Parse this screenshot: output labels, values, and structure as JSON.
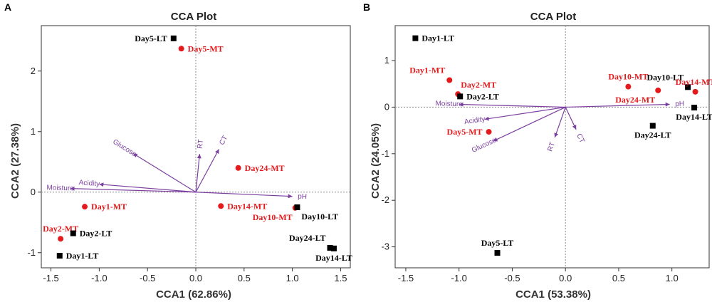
{
  "colors": {
    "arrow": "#7b3fa0",
    "mt_point": "#e41a1c",
    "lt_point": "#000000",
    "frame": "#333333",
    "zero_line": "#888888"
  },
  "chart_data": [
    {
      "panel_tag": "A",
      "type": "scatter",
      "title": "CCA Plot",
      "xlabel": "CCA1 (62.86%)",
      "ylabel": "CCA2 (27.38%)",
      "xlim": [
        -1.6,
        1.6
      ],
      "ylim": [
        -1.25,
        2.75
      ],
      "xticks": [
        -1.5,
        -1.0,
        -0.5,
        0.0,
        0.5,
        1.0,
        1.5
      ],
      "xtick_labels": [
        "-1.5",
        "-1.0",
        "-0.5",
        "0.0",
        "0.5",
        "1.0",
        "1.5"
      ],
      "yticks": [
        -1,
        0,
        1,
        2
      ],
      "ytick_labels": [
        "-1",
        "0",
        "1",
        "2"
      ],
      "legend": "none",
      "points": [
        {
          "label": "Day5-LT",
          "group": "LT",
          "x": -0.23,
          "y": 2.54,
          "label_pos": "left"
        },
        {
          "label": "Day5-MT",
          "group": "MT",
          "x": -0.15,
          "y": 2.37,
          "label_pos": "right"
        },
        {
          "label": "Day24-MT",
          "group": "MT",
          "x": 0.44,
          "y": 0.4,
          "label_pos": "right"
        },
        {
          "label": "Day1-MT",
          "group": "MT",
          "x": -1.15,
          "y": -0.24,
          "label_pos": "right"
        },
        {
          "label": "Day14-MT",
          "group": "MT",
          "x": 0.26,
          "y": -0.23,
          "label_pos": "right"
        },
        {
          "label": "Day10-MT",
          "group": "MT",
          "x": 1.03,
          "y": -0.26,
          "label_pos": "below-left"
        },
        {
          "label": "Day10-LT",
          "group": "LT",
          "x": 1.05,
          "y": -0.25,
          "label_pos": "below-right"
        },
        {
          "label": "Day2-MT",
          "group": "MT",
          "x": -1.4,
          "y": -0.77,
          "label_pos": "above"
        },
        {
          "label": "Day2-LT",
          "group": "LT",
          "x": -1.27,
          "y": -0.68,
          "label_pos": "right"
        },
        {
          "label": "Day1-LT",
          "group": "LT",
          "x": -1.41,
          "y": -1.05,
          "label_pos": "right"
        },
        {
          "label": "Day24-LT",
          "group": "LT",
          "x": 1.39,
          "y": -0.92,
          "label_pos": "above-left"
        },
        {
          "label": "Day14-LT",
          "group": "LT",
          "x": 1.43,
          "y": -0.93,
          "label_pos": "below"
        }
      ],
      "arrows": [
        {
          "label": "pH",
          "x": 1.0,
          "y": -0.07
        },
        {
          "label": "Moisture",
          "x": -1.3,
          "y": 0.06
        },
        {
          "label": "Acidity",
          "x": -1.0,
          "y": 0.13
        },
        {
          "label": "Glucose",
          "x": -0.65,
          "y": 0.64
        },
        {
          "label": "RT",
          "x": 0.04,
          "y": 0.63
        },
        {
          "label": "CT",
          "x": 0.24,
          "y": 0.71
        }
      ]
    },
    {
      "panel_tag": "B",
      "type": "scatter",
      "title": "CCA Plot",
      "xlabel": "CCA1 (53.38%)",
      "ylabel": "CCA2 (24.05%)",
      "xlim": [
        -1.6,
        1.35
      ],
      "ylim": [
        -3.45,
        1.75
      ],
      "xticks": [
        -1.5,
        -1.0,
        -0.5,
        0.0,
        0.5,
        1.0
      ],
      "xtick_labels": [
        "-1.5",
        "-1.0",
        "-0.5",
        "0.0",
        "0.5",
        "1.0"
      ],
      "yticks": [
        -3,
        -2,
        -1,
        0,
        1
      ],
      "ytick_labels": [
        "-3",
        "-2",
        "-1",
        "0",
        "1"
      ],
      "legend": "none",
      "points": [
        {
          "label": "Day1-LT",
          "group": "LT",
          "x": -1.41,
          "y": 1.48,
          "label_pos": "right"
        },
        {
          "label": "Day1-MT",
          "group": "MT",
          "x": -1.09,
          "y": 0.58,
          "label_pos": "above-left"
        },
        {
          "label": "Day2-MT",
          "group": "MT",
          "x": -1.01,
          "y": 0.28,
          "label_pos": "above-right"
        },
        {
          "label": "Day2-LT",
          "group": "LT",
          "x": -0.99,
          "y": 0.23,
          "label_pos": "right"
        },
        {
          "label": "Day5-MT",
          "group": "MT",
          "x": -0.72,
          "y": -0.53,
          "label_pos": "left"
        },
        {
          "label": "Day5-LT",
          "group": "LT",
          "x": -0.64,
          "y": -3.13,
          "label_pos": "above"
        },
        {
          "label": "Day10-MT",
          "group": "MT",
          "x": 0.59,
          "y": 0.44,
          "label_pos": "above"
        },
        {
          "label": "Day24-MT",
          "group": "MT",
          "x": 0.87,
          "y": 0.36,
          "label_pos": "below-left"
        },
        {
          "label": "Day10-LT",
          "group": "LT",
          "x": 1.15,
          "y": 0.43,
          "label_pos": "above-left"
        },
        {
          "label": "Day14-MT",
          "group": "MT",
          "x": 1.22,
          "y": 0.33,
          "label_pos": "above"
        },
        {
          "label": "Day14-LT",
          "group": "LT",
          "x": 1.21,
          "y": -0.01,
          "label_pos": "below"
        },
        {
          "label": "Day24-LT",
          "group": "LT",
          "x": 0.82,
          "y": -0.4,
          "label_pos": "below"
        }
      ],
      "arrows": [
        {
          "label": "pH",
          "x": 0.98,
          "y": 0.06
        },
        {
          "label": "Moisture",
          "x": -1.0,
          "y": 0.06
        },
        {
          "label": "Acidity",
          "x": -0.76,
          "y": -0.26
        },
        {
          "label": "Glucose",
          "x": -0.68,
          "y": -0.73
        },
        {
          "label": "RT",
          "x": -0.1,
          "y": -0.65
        },
        {
          "label": "CT",
          "x": 0.1,
          "y": -0.48
        }
      ]
    }
  ]
}
